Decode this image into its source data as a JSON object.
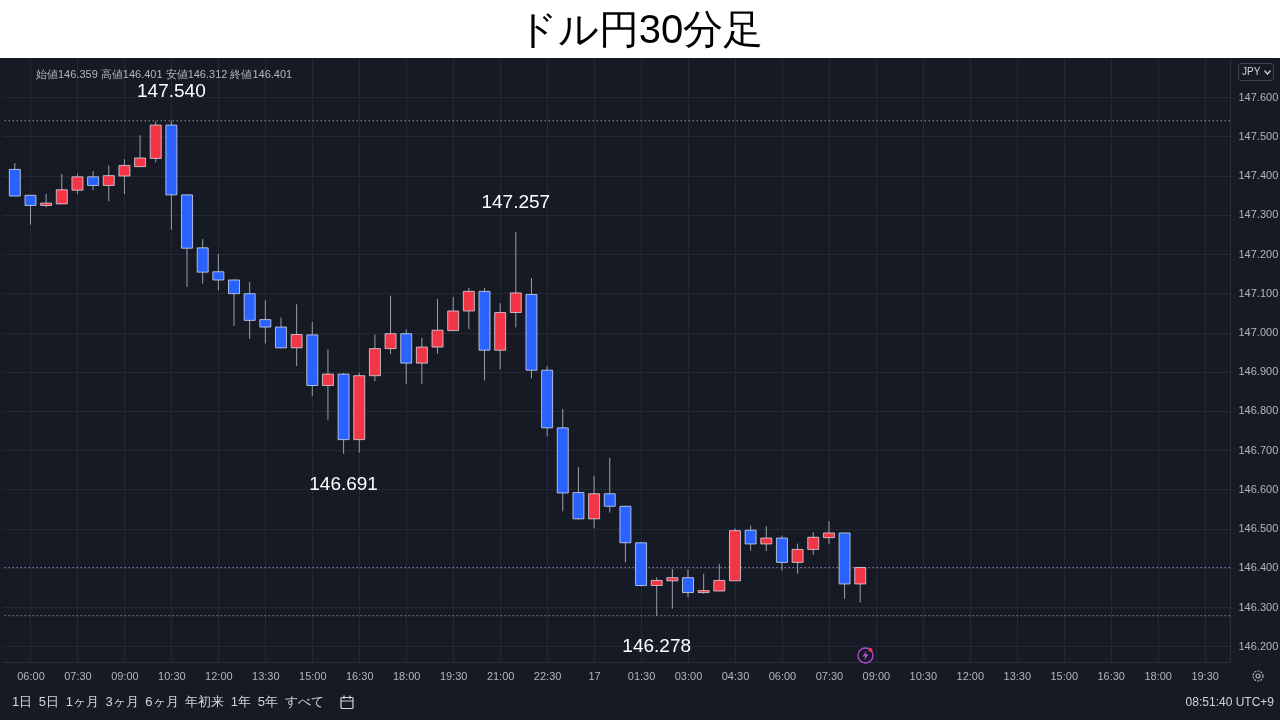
{
  "chart_data": {
    "type": "candlestick",
    "title": "ドル円30分足",
    "annotations": [
      "始値146.359 高値146.401 安値146.312 終値146.401",
      "JPY",
      "1日 5日 1ヶ月 3ヶ月 6ヶ月 年初来 1年 5年 すべて",
      "08:51:40 UTC+9",
      {
        "text": "147.540",
        "x": "--09-16T10:30",
        "y": 147.54
      },
      {
        "text": "147.257",
        "x": "--09-16T21:30",
        "y": 147.257
      },
      {
        "text": "146.691",
        "x": "--09-16T16:00",
        "y": 146.691
      },
      {
        "text": "146.278",
        "x": "--09-17T02:00",
        "y": 146.278
      }
    ],
    "x": [
      "--09-16T05:30",
      "--09-16T06:00",
      "--09-16T06:30",
      "--09-16T07:00",
      "--09-16T07:30",
      "--09-16T08:00",
      "--09-16T08:30",
      "--09-16T09:00",
      "--09-16T09:30",
      "--09-16T10:00",
      "--09-16T10:30",
      "--09-16T11:00",
      "--09-16T11:30",
      "--09-16T12:00",
      "--09-16T12:30",
      "--09-16T13:00",
      "--09-16T13:30",
      "--09-16T14:00",
      "--09-16T14:30",
      "--09-16T15:00",
      "--09-16T15:30",
      "--09-16T16:00",
      "--09-16T16:30",
      "--09-16T17:00",
      "--09-16T17:30",
      "--09-16T18:00",
      "--09-16T18:30",
      "--09-16T19:00",
      "--09-16T19:30",
      "--09-16T20:00",
      "--09-16T20:30",
      "--09-16T21:00",
      "--09-16T21:30",
      "--09-16T22:00",
      "--09-16T22:30",
      "--09-16T23:00",
      "--09-16T23:30",
      "--09-17T00:00",
      "--09-17T00:30",
      "--09-17T01:00",
      "--09-17T01:30",
      "--09-17T02:00",
      "--09-17T02:30",
      "--09-17T03:00",
      "--09-17T03:30",
      "--09-17T04:00",
      "--09-17T04:30",
      "--09-17T05:00",
      "--09-17T05:30",
      "--09-17T06:00",
      "--09-17T06:30",
      "--09-17T07:00",
      "--09-17T07:30",
      "--09-17T08:00",
      "--09-17T08:30"
    ],
    "ohlc": [
      [
        147.416,
        147.432,
        147.348,
        147.348
      ],
      [
        147.35,
        147.35,
        147.275,
        147.324
      ],
      [
        147.324,
        147.353,
        147.319,
        147.33
      ],
      [
        147.328,
        147.404,
        147.328,
        147.364
      ],
      [
        147.363,
        147.405,
        147.353,
        147.397
      ],
      [
        147.397,
        147.411,
        147.363,
        147.375
      ],
      [
        147.375,
        147.426,
        147.335,
        147.4
      ],
      [
        147.399,
        147.442,
        147.353,
        147.426
      ],
      [
        147.423,
        147.503,
        147.423,
        147.445
      ],
      [
        147.444,
        147.538,
        147.434,
        147.529
      ],
      [
        147.529,
        147.54,
        147.262,
        147.351
      ],
      [
        147.351,
        147.353,
        147.116,
        147.215
      ],
      [
        147.216,
        147.238,
        147.125,
        147.154
      ],
      [
        147.155,
        147.2,
        147.108,
        147.134
      ],
      [
        147.134,
        147.135,
        147.017,
        147.099
      ],
      [
        147.099,
        147.129,
        146.984,
        147.031
      ],
      [
        147.033,
        147.082,
        146.972,
        147.014
      ],
      [
        147.014,
        147.038,
        146.96,
        146.961
      ],
      [
        146.961,
        147.072,
        146.915,
        146.995
      ],
      [
        146.994,
        147.027,
        146.838,
        146.865
      ],
      [
        146.865,
        146.957,
        146.778,
        146.894
      ],
      [
        146.894,
        146.897,
        146.691,
        146.727
      ],
      [
        146.727,
        146.898,
        146.694,
        146.89
      ],
      [
        146.89,
        146.995,
        146.876,
        146.959
      ],
      [
        146.959,
        147.094,
        146.945,
        146.997
      ],
      [
        146.997,
        147.008,
        146.869,
        146.922
      ],
      [
        146.922,
        146.987,
        146.869,
        146.963
      ],
      [
        146.963,
        147.086,
        146.946,
        147.006
      ],
      [
        147.005,
        147.091,
        147.004,
        147.055
      ],
      [
        147.055,
        147.114,
        147.009,
        147.105
      ],
      [
        147.105,
        147.114,
        146.878,
        146.955
      ],
      [
        146.955,
        147.075,
        146.906,
        147.051
      ],
      [
        147.051,
        147.257,
        147.013,
        147.101
      ],
      [
        147.097,
        147.139,
        146.883,
        146.904
      ],
      [
        146.904,
        146.915,
        146.735,
        146.757
      ],
      [
        146.757,
        146.805,
        146.544,
        146.591
      ],
      [
        146.592,
        146.657,
        146.523,
        146.525
      ],
      [
        146.525,
        146.635,
        146.501,
        146.589
      ],
      [
        146.589,
        146.681,
        146.541,
        146.557
      ],
      [
        146.557,
        146.559,
        146.414,
        146.464
      ],
      [
        146.464,
        146.465,
        146.353,
        146.355
      ],
      [
        146.355,
        146.376,
        146.278,
        146.368
      ],
      [
        146.367,
        146.397,
        146.296,
        146.375
      ],
      [
        146.375,
        146.396,
        146.325,
        146.337
      ],
      [
        146.337,
        146.385,
        146.334,
        146.342
      ],
      [
        146.341,
        146.41,
        146.341,
        146.368
      ],
      [
        146.367,
        146.501,
        146.367,
        146.495
      ],
      [
        146.496,
        146.508,
        146.444,
        146.461
      ],
      [
        146.461,
        146.506,
        146.443,
        146.476
      ],
      [
        146.476,
        146.482,
        146.394,
        146.414
      ],
      [
        146.414,
        146.462,
        146.385,
        146.447
      ],
      [
        146.447,
        146.491,
        146.433,
        146.478
      ],
      [
        146.477,
        146.519,
        146.461,
        146.489
      ],
      [
        146.489,
        146.489,
        146.321,
        146.359
      ],
      [
        146.359,
        146.401,
        146.312,
        146.401
      ]
    ],
    "colors": [
      "#2962ff",
      "#2962ff",
      "#f23645",
      "#f23645",
      "#f23645",
      "#2962ff",
      "#f23645",
      "#f23645",
      "#f23645",
      "#f23645",
      "#2962ff",
      "#2962ff",
      "#2962ff",
      "#2962ff",
      "#2962ff",
      "#2962ff",
      "#2962ff",
      "#2962ff",
      "#f23645",
      "#2962ff",
      "#f23645",
      "#2962ff",
      "#f23645",
      "#f23645",
      "#f23645",
      "#2962ff",
      "#f23645",
      "#f23645",
      "#f23645",
      "#f23645",
      "#2962ff",
      "#f23645",
      "#f23645",
      "#2962ff",
      "#2962ff",
      "#2962ff",
      "#2962ff",
      "#f23645",
      "#2962ff",
      "#2962ff",
      "#2962ff",
      "#f23645",
      "#f23645",
      "#2962ff",
      "#f23645",
      "#f23645",
      "#f23645",
      "#2962ff",
      "#f23645",
      "#2962ff",
      "#f23645",
      "#f23645",
      "#f23645",
      "#2962ff",
      "#f23645"
    ],
    "xlim": [
      "--09-16T05:15",
      "--09-17T20:09"
    ],
    "xticks": [
      {
        "value": "--09-16T06:00",
        "label": "06:00"
      },
      {
        "value": "--09-16T07:30",
        "label": "07:30"
      },
      {
        "value": "--09-16T09:00",
        "label": "09:00"
      },
      {
        "value": "--09-16T10:30",
        "label": "10:30"
      },
      {
        "value": "--09-16T12:00",
        "label": "12:00"
      },
      {
        "value": "--09-16T13:30",
        "label": "13:30"
      },
      {
        "value": "--09-16T15:00",
        "label": "15:00"
      },
      {
        "value": "--09-16T16:30",
        "label": "16:30"
      },
      {
        "value": "--09-16T18:00",
        "label": "18:00"
      },
      {
        "value": "--09-16T19:30",
        "label": "19:30"
      },
      {
        "value": "--09-16T21:00",
        "label": "21:00"
      },
      {
        "value": "--09-16T22:30",
        "label": "22:30"
      },
      {
        "value": "--09-17T00:00",
        "label": "17"
      },
      {
        "value": "--09-17T01:30",
        "label": "01:30"
      },
      {
        "value": "--09-17T03:00",
        "label": "03:00"
      },
      {
        "value": "--09-17T04:30",
        "label": "04:30"
      },
      {
        "value": "--09-17T06:00",
        "label": "06:00"
      },
      {
        "value": "--09-17T07:30",
        "label": "07:30"
      },
      {
        "value": "--09-17T09:00",
        "label": "09:00"
      },
      {
        "value": "--09-17T10:30",
        "label": "10:30"
      },
      {
        "value": "--09-17T12:00",
        "label": "12:00"
      },
      {
        "value": "--09-17T13:30",
        "label": "13:30"
      },
      {
        "value": "--09-17T15:00",
        "label": "15:00"
      },
      {
        "value": "--09-17T16:30",
        "label": "16:30"
      },
      {
        "value": "--09-17T18:00",
        "label": "18:00"
      },
      {
        "value": "--09-17T19:30",
        "label": "19:30"
      }
    ],
    "ylim": [
      146.16,
      147.7
    ],
    "yticks": [
      {
        "value": 146.2,
        "label": "146.200"
      },
      {
        "value": 146.3,
        "label": "146.300"
      },
      {
        "value": 146.4,
        "label": "146.400"
      },
      {
        "value": 146.5,
        "label": "146.500"
      },
      {
        "value": 146.6,
        "label": "146.600"
      },
      {
        "value": 146.7,
        "label": "146.700"
      },
      {
        "value": 146.8,
        "label": "146.800"
      },
      {
        "value": 146.9,
        "label": "146.900"
      },
      {
        "value": 147.0,
        "label": "147.000"
      },
      {
        "value": 147.1,
        "label": "147.100"
      },
      {
        "value": 147.2,
        "label": "147.200"
      },
      {
        "value": 147.3,
        "label": "147.300"
      },
      {
        "value": 147.4,
        "label": "147.400"
      },
      {
        "value": 147.5,
        "label": "147.500"
      },
      {
        "value": 147.6,
        "label": "147.600"
      }
    ],
    "ref_lines": [
      {
        "axis": "y",
        "value": 147.54,
        "color": "#8f939e",
        "line_style": "dotted"
      },
      {
        "axis": "y",
        "value": 146.401,
        "color": "#9c72d0",
        "line_style": "dotted"
      },
      {
        "axis": "y",
        "value": 146.278,
        "color": "#8f939e",
        "line_style": "dotted"
      }
    ],
    "grid": true
  }
}
